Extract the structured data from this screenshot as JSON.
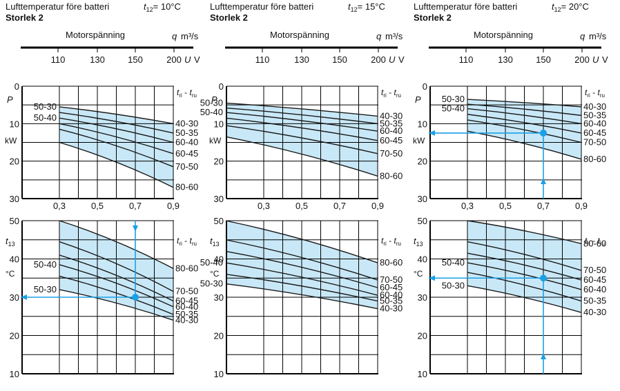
{
  "colors": {
    "band": "#c9e8f7",
    "arrow": "#1aa0e6",
    "curve": "#1a1a1a",
    "grid": "#000000"
  },
  "panels": [
    {
      "title": "Lufttemperatur före batteri",
      "t12_symbol": "t",
      "t12_sub": "12",
      "t12_value": "= 10°C",
      "size_label": "Storlek 2",
      "axis_title": "Motorspänning",
      "q_label": "q",
      "q_unit": "m³/s",
      "u_label": "U",
      "u_unit": "V",
      "u_ticks": [
        "110",
        "130",
        "150",
        "200"
      ],
      "q_ticks": [
        "0,3",
        "0,5",
        "0,7",
        "0,9"
      ],
      "p_symbol": "P",
      "p_unit": "kW",
      "t13_symbol": "t",
      "t13_sub": "13",
      "t13_unit": "°C",
      "legend_label": {
        "a": "t",
        "asub": "ri",
        "sep": " - ",
        "b": "t",
        "bsub": "ru"
      }
    },
    {
      "title": "Lufttemperatur före batteri",
      "t12_symbol": "t",
      "t12_sub": "12",
      "t12_value": "= 15°C",
      "size_label": "Storlek 2",
      "axis_title": "Motorspänning",
      "q_label": "q",
      "q_unit": "m³/s",
      "u_label": "U",
      "u_unit": "V",
      "u_ticks": [
        "110",
        "130",
        "150",
        "200"
      ],
      "q_ticks": [
        "0,3",
        "0,5",
        "0,7",
        "0,9"
      ],
      "p_symbol": "P",
      "p_unit": "kW",
      "t13_symbol": "t",
      "t13_sub": "13",
      "t13_unit": "°C",
      "legend_label": {
        "a": "t",
        "asub": "ri",
        "sep": " - ",
        "b": "t",
        "bsub": "ru"
      }
    },
    {
      "title": "Lufttemperatur före batteri",
      "t12_symbol": "t",
      "t12_sub": "12",
      "t12_value": "= 20°C",
      "size_label": "Storlek 2",
      "axis_title": "Motorspänning",
      "q_label": "q",
      "q_unit": "m³/s",
      "u_label": "U",
      "u_unit": "V",
      "u_ticks": [
        "110",
        "130",
        "150",
        "200"
      ],
      "q_ticks": [
        "0,3",
        "0,5",
        "0,7",
        "0,9"
      ],
      "p_symbol": "P",
      "p_unit": "kW",
      "t13_symbol": "t",
      "t13_sub": "13",
      "t13_unit": "°C",
      "legend_label": {
        "a": "t",
        "asub": "ri",
        "sep": " - ",
        "b": "t",
        "bsub": "ru"
      }
    }
  ],
  "chart_data": [
    {
      "type": "line",
      "title": "Lufttemperatur före batteri t12 = 10°C, Storlek 2 — P",
      "xlabel": "q m³/s",
      "ylabel": "P kW",
      "xlim": [
        0.1,
        0.9
      ],
      "ylim": [
        0,
        30
      ],
      "y_inverted": true,
      "x_ticks": [
        0.3,
        0.5,
        0.7,
        0.9
      ],
      "y_ticks": [
        0,
        10,
        20,
        30
      ],
      "x": [
        0.3,
        0.9
      ],
      "band_range": [
        0.3,
        0.9
      ],
      "series": [
        {
          "name": "50-30",
          "left_label": true,
          "y": [
            5.5,
            10.0
          ]
        },
        {
          "name": "40-30",
          "right_label": true,
          "y": [
            5.5,
            10.0
          ]
        },
        {
          "name": "50-35",
          "right_label": true,
          "y": [
            7.0,
            12.5
          ]
        },
        {
          "name": "50-40",
          "left_label": true,
          "y": [
            8.5,
            15.0
          ]
        },
        {
          "name": "60-40",
          "right_label": true,
          "y": [
            8.5,
            15.0
          ]
        },
        {
          "name": "60-45",
          "right_label": true,
          "y": [
            10.0,
            18.0
          ]
        },
        {
          "name": "70-50",
          "right_label": true,
          "y": [
            11.5,
            21.5
          ]
        },
        {
          "name": "80-60",
          "right_label": true,
          "y": [
            15.0,
            27.0
          ]
        }
      ],
      "annotations": []
    },
    {
      "type": "line",
      "title": "Lufttemperatur före batteri t12 = 10°C, Storlek 2 — t13",
      "xlabel": "q m³/s",
      "ylabel": "t13 °C",
      "xlim": [
        0.1,
        0.9
      ],
      "ylim": [
        10,
        50
      ],
      "x_ticks": [
        0.3,
        0.5,
        0.7,
        0.9
      ],
      "y_ticks": [
        10,
        20,
        30,
        40,
        50
      ],
      "x": [
        0.3,
        0.9
      ],
      "band_range": [
        0.3,
        0.9
      ],
      "series": [
        {
          "name": "80-60",
          "right_label": true,
          "y": [
            50.0,
            37.5
          ]
        },
        {
          "name": "70-50",
          "right_label": true,
          "y": [
            44.5,
            31.5
          ]
        },
        {
          "name": "60-45",
          "right_label": true,
          "y": [
            41.0,
            29.0
          ]
        },
        {
          "name": "50-40",
          "left_label": true,
          "y": [
            38.5,
            27.5
          ]
        },
        {
          "name": "60-40",
          "right_label": true,
          "y": [
            38.5,
            27.5
          ]
        },
        {
          "name": "50-35",
          "right_label": true,
          "y": [
            35.5,
            25.5
          ]
        },
        {
          "name": "50-30",
          "left_label": true,
          "y": [
            32.0,
            24.0
          ]
        },
        {
          "name": "40-30",
          "right_label": true,
          "y": [
            32.0,
            24.0
          ]
        }
      ],
      "annotations": [
        {
          "x": 0.7,
          "y": 30.0,
          "arrows": [
            "down",
            "left"
          ]
        }
      ]
    },
    {
      "type": "line",
      "title": "Lufttemperatur före batteri t12 = 15°C, Storlek 2 — P",
      "xlabel": "q m³/s",
      "ylabel": "P kW",
      "xlim": [
        0.1,
        0.9
      ],
      "ylim": [
        0,
        30
      ],
      "y_inverted": true,
      "x_ticks": [
        0.3,
        0.5,
        0.7,
        0.9
      ],
      "y_ticks": [
        0,
        10,
        20,
        30
      ],
      "x": [
        0.1,
        0.9
      ],
      "band_range": [
        0.1,
        0.9
      ],
      "series": [
        {
          "name": "50-30",
          "left_label": true,
          "y": [
            4.5,
            8.0
          ]
        },
        {
          "name": "40-30",
          "right_label": true,
          "y": [
            4.5,
            8.0
          ]
        },
        {
          "name": "50-35",
          "right_label": true,
          "y": [
            5.8,
            10.0
          ]
        },
        {
          "name": "50-40",
          "left_label": true,
          "y": [
            7.0,
            12.0
          ]
        },
        {
          "name": "60-40",
          "right_label": true,
          "y": [
            7.0,
            12.0
          ]
        },
        {
          "name": "60-45",
          "right_label": true,
          "y": [
            8.5,
            14.5
          ]
        },
        {
          "name": "70-50",
          "right_label": true,
          "y": [
            10.5,
            18.0
          ]
        },
        {
          "name": "80-60",
          "right_label": true,
          "y": [
            13.5,
            24.0
          ]
        }
      ],
      "annotations": []
    },
    {
      "type": "line",
      "title": "Lufttemperatur före batteri t12 = 15°C, Storlek 2 — t13",
      "xlabel": "q m³/s",
      "ylabel": "t13 °C",
      "xlim": [
        0.1,
        0.9
      ],
      "ylim": [
        10,
        50
      ],
      "x_ticks": [
        0.3,
        0.5,
        0.7,
        0.9
      ],
      "y_ticks": [
        10,
        20,
        30,
        40,
        50
      ],
      "x": [
        0.1,
        0.9
      ],
      "band_range": [
        0.1,
        0.9
      ],
      "series": [
        {
          "name": "80-60",
          "right_label": true,
          "y": [
            50.0,
            39.0
          ]
        },
        {
          "name": "70-50",
          "right_label": true,
          "y": [
            45.0,
            34.5
          ]
        },
        {
          "name": "60-45",
          "right_label": true,
          "y": [
            42.0,
            32.5
          ]
        },
        {
          "name": "50-40",
          "left_label": true,
          "y": [
            39.0,
            30.5
          ]
        },
        {
          "name": "60-40",
          "right_label": true,
          "y": [
            39.0,
            30.5
          ]
        },
        {
          "name": "50-35",
          "right_label": true,
          "y": [
            36.0,
            29.0
          ]
        },
        {
          "name": "50-30",
          "left_label": true,
          "y": [
            33.5,
            27.0
          ]
        },
        {
          "name": "40-30",
          "right_label": true,
          "y": [
            33.5,
            27.0
          ]
        }
      ],
      "annotations": []
    },
    {
      "type": "line",
      "title": "Lufttemperatur före batteri t12 = 20°C, Storlek 2 — P",
      "xlabel": "q m³/s",
      "ylabel": "P kW",
      "xlim": [
        0.1,
        0.9
      ],
      "ylim": [
        0,
        30
      ],
      "y_inverted": true,
      "x_ticks": [
        0.3,
        0.5,
        0.7,
        0.9
      ],
      "y_ticks": [
        0,
        10,
        20,
        30
      ],
      "x": [
        0.3,
        0.9
      ],
      "band_range": [
        0.3,
        0.9
      ],
      "series": [
        {
          "name": "50-30",
          "left_label": true,
          "y": [
            3.5,
            5.5
          ]
        },
        {
          "name": "40-30",
          "right_label": true,
          "y": [
            3.5,
            5.5
          ]
        },
        {
          "name": "50-35",
          "right_label": true,
          "y": [
            4.8,
            7.8
          ]
        },
        {
          "name": "50-40",
          "left_label": true,
          "y": [
            6.0,
            10.0
          ]
        },
        {
          "name": "60-40",
          "right_label": true,
          "y": [
            6.0,
            10.0
          ]
        },
        {
          "name": "60-45",
          "right_label": true,
          "y": [
            7.5,
            12.5
          ]
        },
        {
          "name": "70-50",
          "right_label": true,
          "y": [
            9.0,
            15.0
          ]
        },
        {
          "name": "80-60",
          "right_label": true,
          "y": [
            12.0,
            19.5
          ]
        }
      ],
      "annotations": [
        {
          "x": 0.7,
          "y": 12.5,
          "arrows": [
            "up",
            "left"
          ]
        }
      ]
    },
    {
      "type": "line",
      "title": "Lufttemperatur före batteri t12 = 20°C, Storlek 2 — t13",
      "xlabel": "q m³/s",
      "ylabel": "t13 °C",
      "xlim": [
        0.1,
        0.9
      ],
      "ylim": [
        10,
        50
      ],
      "x_ticks": [
        0.3,
        0.5,
        0.7,
        0.9
      ],
      "y_ticks": [
        10,
        20,
        30,
        40,
        50
      ],
      "x": [
        0.3,
        0.9
      ],
      "band_range": [
        0.3,
        0.9
      ],
      "series": [
        {
          "name": "80-60",
          "right_label": true,
          "y": [
            50.0,
            44.0
          ]
        },
        {
          "name": "70-50",
          "right_label": true,
          "y": [
            44.5,
            37.0
          ]
        },
        {
          "name": "60-45",
          "right_label": true,
          "y": [
            41.5,
            34.5
          ]
        },
        {
          "name": "50-40",
          "left_label": true,
          "y": [
            39.0,
            32.0
          ]
        },
        {
          "name": "60-40",
          "right_label": true,
          "y": [
            39.0,
            32.0
          ]
        },
        {
          "name": "50-35",
          "right_label": true,
          "y": [
            36.5,
            29.0
          ]
        },
        {
          "name": "50-30",
          "left_label": true,
          "y": [
            33.0,
            26.0
          ]
        },
        {
          "name": "40-30",
          "right_label": true,
          "y": [
            33.0,
            26.0
          ]
        }
      ],
      "annotations": [
        {
          "x": 0.7,
          "y": 35.0,
          "arrows": [
            "up",
            "left"
          ]
        }
      ]
    }
  ]
}
